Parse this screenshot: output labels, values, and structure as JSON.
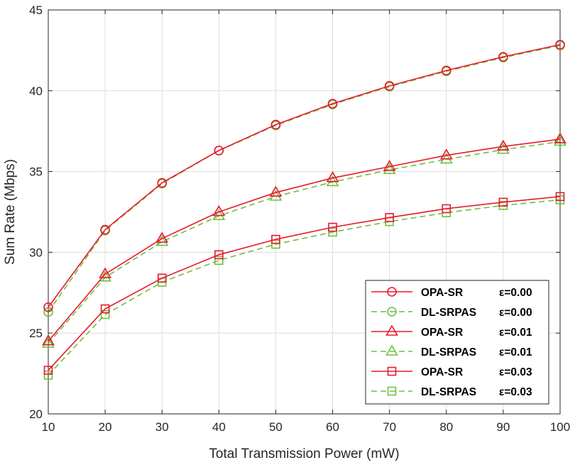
{
  "chart_data": {
    "type": "line",
    "title": "",
    "xlabel": "Total Transmission Power (mW)",
    "ylabel": "Sum Rate (Mbps)",
    "xlim": [
      10,
      100
    ],
    "ylim": [
      20,
      45
    ],
    "xticks": [
      10,
      20,
      30,
      40,
      50,
      60,
      70,
      80,
      90,
      100
    ],
    "yticks": [
      20,
      25,
      30,
      35,
      40,
      45
    ],
    "grid": true,
    "legend_position": "bottom-right",
    "x": [
      10,
      20,
      30,
      40,
      50,
      60,
      70,
      80,
      90,
      100
    ],
    "series": [
      {
        "name": "OPA-SR",
        "epsilon": "ε=0.00",
        "color": "#e8192c",
        "dash": "solid",
        "marker": "circle",
        "values": [
          26.6,
          31.4,
          34.3,
          36.3,
          37.9,
          39.2,
          40.3,
          41.25,
          42.1,
          42.85
        ]
      },
      {
        "name": "DL-SRPAS",
        "epsilon": "ε=0.00",
        "color": "#6fbf3f",
        "dash": "dashed",
        "marker": "circle",
        "values": [
          26.3,
          31.35,
          34.25,
          36.3,
          37.85,
          39.15,
          40.25,
          41.2,
          42.05,
          42.8
        ]
      },
      {
        "name": "OPA-SR",
        "epsilon": "ε=0.01",
        "color": "#e8192c",
        "dash": "solid",
        "marker": "triangle",
        "values": [
          24.5,
          28.65,
          30.85,
          32.5,
          33.7,
          34.6,
          35.3,
          36.0,
          36.55,
          37.0
        ]
      },
      {
        "name": "DL-SRPAS",
        "epsilon": "ε=0.01",
        "color": "#6fbf3f",
        "dash": "dashed",
        "marker": "triangle",
        "values": [
          24.35,
          28.45,
          30.65,
          32.25,
          33.45,
          34.35,
          35.1,
          35.75,
          36.35,
          36.85
        ]
      },
      {
        "name": "OPA-SR",
        "epsilon": "ε=0.03",
        "color": "#e8192c",
        "dash": "solid",
        "marker": "square",
        "values": [
          22.7,
          26.5,
          28.4,
          29.85,
          30.8,
          31.55,
          32.15,
          32.7,
          33.1,
          33.45
        ]
      },
      {
        "name": "DL-SRPAS",
        "epsilon": "ε=0.03",
        "color": "#6fbf3f",
        "dash": "dashed",
        "marker": "square",
        "values": [
          22.4,
          26.15,
          28.15,
          29.5,
          30.5,
          31.25,
          31.9,
          32.45,
          32.9,
          33.25
        ]
      }
    ]
  }
}
